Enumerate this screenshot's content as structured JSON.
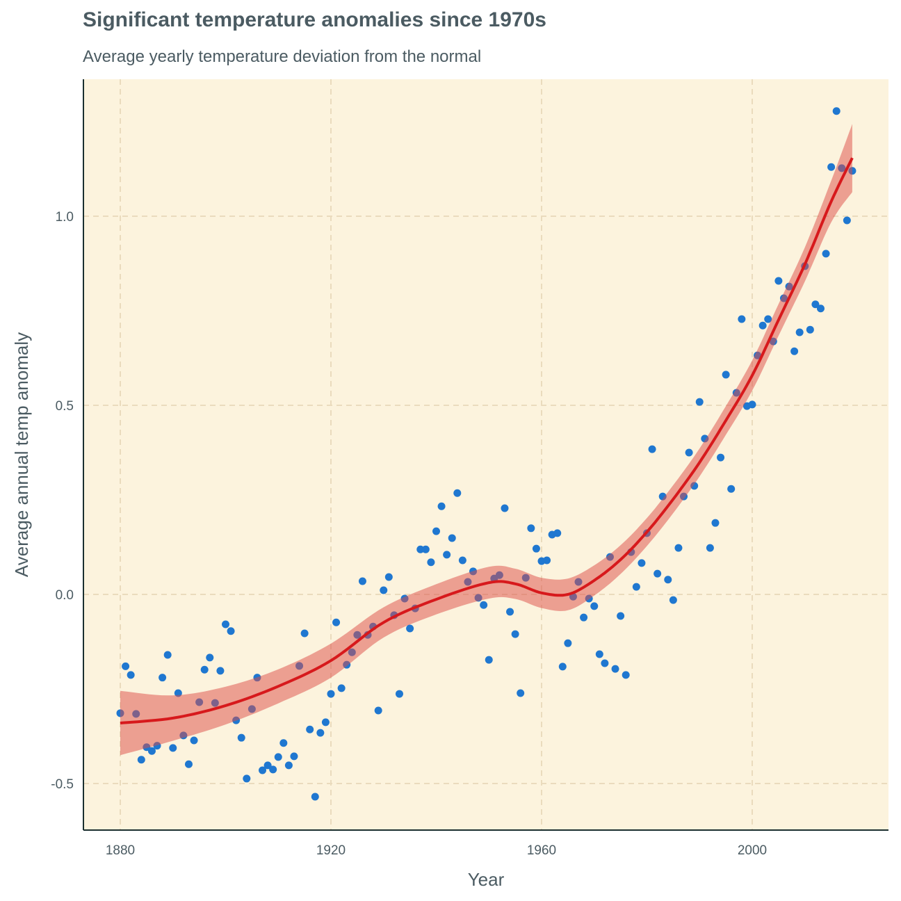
{
  "chart_data": {
    "type": "scatter",
    "title": "Significant temperature anomalies since 1970s",
    "subtitle": "Average yearly temperature deviation from the normal",
    "xlabel": "Year",
    "ylabel": "Average annual temp anomaly",
    "xlim": [
      1873,
      2026
    ],
    "ylim": [
      -0.62,
      1.35
    ],
    "x_ticks": [
      1880,
      1920,
      1960,
      2000
    ],
    "y_ticks": [
      -0.5,
      0.0,
      0.5,
      1.0
    ],
    "y_tick_labels": [
      "-0.5",
      "0.0",
      "0.5",
      "1.0"
    ],
    "grid": true,
    "colors": {
      "background": "#fcf3dd",
      "points": "#1f77d0",
      "smooth_line": "#d7191c",
      "ribbon": "#dc4c46",
      "grid": "#eadbbd",
      "axis": "#1b2f2f"
    },
    "points": {
      "start_year": 1880,
      "values": [
        -0.314,
        -0.19,
        -0.213,
        -0.316,
        -0.437,
        -0.404,
        -0.414,
        -0.4,
        -0.22,
        -0.16,
        -0.406,
        -0.261,
        -0.373,
        -0.449,
        -0.386,
        -0.285,
        -0.199,
        -0.167,
        -0.287,
        -0.202,
        -0.079,
        -0.097,
        -0.333,
        -0.379,
        -0.487,
        -0.303,
        -0.22,
        -0.465,
        -0.452,
        -0.463,
        -0.43,
        -0.393,
        -0.452,
        -0.428,
        -0.189,
        -0.103,
        -0.357,
        -0.535,
        -0.366,
        -0.338,
        -0.263,
        -0.074,
        -0.248,
        -0.186,
        -0.153,
        -0.107,
        0.035,
        -0.107,
        -0.085,
        -0.307,
        0.011,
        0.046,
        -0.055,
        -0.263,
        -0.011,
        -0.09,
        -0.037,
        0.119,
        0.119,
        0.085,
        0.167,
        0.233,
        0.105,
        0.149,
        0.268,
        0.09,
        0.033,
        0.061,
        -0.009,
        -0.028,
        -0.173,
        0.042,
        0.051,
        0.228,
        -0.046,
        -0.105,
        -0.261,
        0.044,
        0.175,
        0.121,
        0.088,
        0.09,
        0.158,
        0.162,
        -0.191,
        -0.129,
        -0.006,
        0.033,
        -0.061,
        -0.011,
        -0.031,
        -0.158,
        -0.182,
        0.099,
        -0.197,
        -0.057,
        -0.213,
        0.112,
        0.02,
        0.083,
        0.162,
        0.384,
        0.055,
        0.259,
        0.039,
        -0.015,
        0.123,
        0.259,
        0.375,
        0.287,
        0.509,
        0.412,
        0.123,
        0.189,
        0.362,
        0.581,
        0.279,
        0.533,
        0.728,
        0.498,
        0.502,
        0.632,
        0.711,
        0.728,
        0.669,
        0.829,
        0.783,
        0.814,
        0.643,
        0.693,
        0.868,
        0.7,
        0.767,
        0.756,
        0.901,
        1.13,
        1.278,
        1.127,
        0.989,
        1.12
      ]
    },
    "smooth": {
      "years": [
        1880,
        1890,
        1900,
        1910,
        1920,
        1930,
        1940,
        1950,
        1955,
        1960,
        1965,
        1970,
        1975,
        1980,
        1985,
        1990,
        1995,
        2000,
        2005,
        2010,
        2015,
        2019
      ],
      "fit": [
        -0.34,
        -0.327,
        -0.294,
        -0.243,
        -0.175,
        -0.074,
        -0.013,
        0.031,
        0.028,
        0.004,
        0.0,
        0.037,
        0.092,
        0.165,
        0.252,
        0.349,
        0.46,
        0.579,
        0.726,
        0.873,
        1.039,
        1.154
      ],
      "se": [
        0.085,
        0.06,
        0.05,
        0.045,
        0.045,
        0.04,
        0.04,
        0.042,
        0.04,
        0.04,
        0.042,
        0.04,
        0.038,
        0.037,
        0.037,
        0.037,
        0.038,
        0.04,
        0.042,
        0.045,
        0.055,
        0.09
      ]
    }
  }
}
